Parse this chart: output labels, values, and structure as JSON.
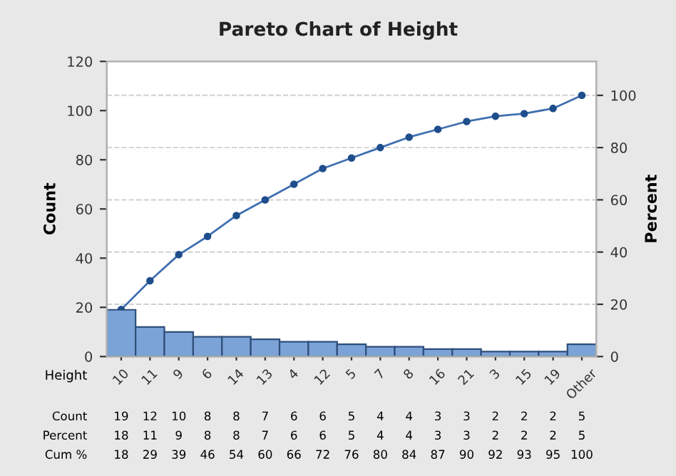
{
  "chart_data": {
    "type": "bar",
    "title": "Pareto Chart of Height",
    "xlabel": "Height",
    "ylabel": "Count",
    "y2label": "Percent",
    "categories": [
      "10",
      "11",
      "9",
      "6",
      "14",
      "13",
      "4",
      "12",
      "5",
      "7",
      "8",
      "16",
      "21",
      "3",
      "15",
      "19",
      "Other"
    ],
    "series": [
      {
        "color": "#7ba3d8",
        "values": [
          19,
          12,
          10,
          8,
          8,
          7,
          6,
          6,
          5,
          4,
          4,
          3,
          3,
          2,
          2,
          2,
          5
        ]
      },
      {
        "type": "line",
        "axis": "y2",
        "color": "#3f6fb0",
        "marker": "circle",
        "values": [
          18,
          29,
          39,
          46,
          54,
          60,
          66,
          72,
          76,
          80,
          84,
          87,
          90,
          92,
          93,
          95,
          100
        ]
      }
    ],
    "ylim": [
      0,
      120
    ],
    "yticks": [
      0,
      20,
      40,
      60,
      80,
      100,
      120
    ],
    "y2lim": [
      0,
      113
    ],
    "y2ticks": [
      0,
      20,
      40,
      60,
      80,
      100
    ],
    "grid": "y",
    "data_labels": true,
    "annotations": [
      "Count",
      "Percent",
      "Cum %",
      "18",
      "11",
      "9",
      "8",
      "8",
      "7",
      "6",
      "6",
      "5",
      "4",
      "4",
      "3",
      "3",
      "2",
      "2",
      "2",
      "5"
    ]
  }
}
